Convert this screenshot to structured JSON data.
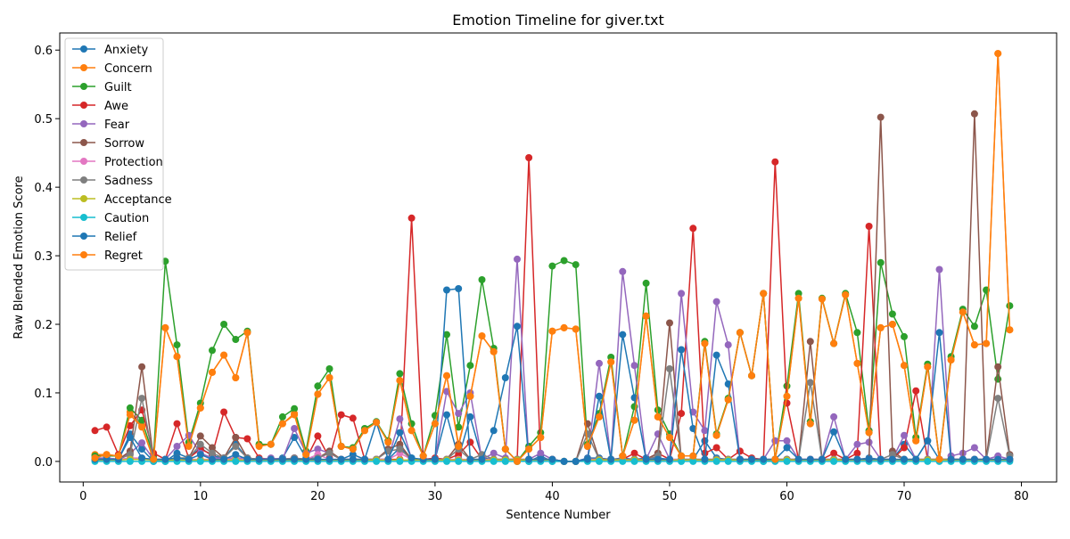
{
  "chart_data": {
    "type": "line",
    "title": "Emotion Timeline for giver.txt",
    "xlabel": "Sentence Number",
    "ylabel": "Raw Blended Emotion Score",
    "xlim": [
      -2,
      83
    ],
    "ylim": [
      -0.03,
      0.625
    ],
    "xticks": [
      0,
      10,
      20,
      30,
      40,
      50,
      60,
      70,
      80
    ],
    "yticks": [
      0.0,
      0.1,
      0.2,
      0.3,
      0.4,
      0.5,
      0.6
    ],
    "ytick_labels": [
      "0.0",
      "0.1",
      "0.2",
      "0.3",
      "0.4",
      "0.5",
      "0.6"
    ],
    "grid": false,
    "legend_position": "upper-left",
    "x": [
      1,
      2,
      3,
      4,
      5,
      6,
      7,
      8,
      9,
      10,
      11,
      12,
      13,
      14,
      15,
      16,
      17,
      18,
      19,
      20,
      21,
      22,
      23,
      24,
      25,
      26,
      27,
      28,
      29,
      30,
      31,
      32,
      33,
      34,
      35,
      36,
      37,
      38,
      39,
      40,
      41,
      42,
      43,
      44,
      45,
      46,
      47,
      48,
      49,
      50,
      51,
      52,
      53,
      54,
      55,
      56,
      57,
      58,
      59,
      60,
      61,
      62,
      63,
      64,
      65,
      66,
      67,
      68,
      69,
      70,
      71,
      72,
      73,
      74,
      75,
      76,
      77,
      78,
      79
    ],
    "series": [
      {
        "name": "Anxiety",
        "color": "#1f77b4",
        "values": [
          0.003,
          0.005,
          0.003,
          0.04,
          0.018,
          0,
          0,
          0.012,
          0.005,
          0.02,
          0.008,
          0.005,
          0.025,
          0.005,
          0.003,
          0.003,
          0.005,
          0.035,
          0.005,
          0.005,
          0.012,
          0.003,
          0.01,
          0.003,
          0.003,
          0.003,
          0.02,
          0.005,
          0.002,
          0.003,
          0.068,
          0.005,
          0.065,
          0.005,
          0.003,
          0.003,
          0.003,
          0,
          0.008,
          0,
          0,
          0,
          0.005,
          0.005,
          0.003,
          0.005,
          0.003,
          0.005,
          0.005,
          0.003,
          0.003,
          0.003,
          0.03,
          0.005,
          0.003,
          0.003,
          0.003,
          0,
          0.003,
          0.003,
          0.003,
          0.003,
          0.003,
          0.003,
          0.003,
          0.003,
          0.005,
          0.003,
          0.003,
          0.025,
          0.003,
          0.03,
          0.003,
          0.003,
          0.003,
          0.003,
          0.003,
          0.003,
          0.003
        ]
      },
      {
        "name": "Concern",
        "color": "#ff7f0e",
        "values": [
          0.01,
          0.01,
          0.008,
          0.072,
          0.052,
          0.003,
          0.195,
          0.153,
          0.025,
          0.078,
          0.13,
          0.155,
          0.122,
          0.188,
          0.025,
          0.025,
          0.055,
          0.07,
          0.01,
          0.098,
          0.122,
          0.022,
          0.018,
          0.045,
          0.057,
          0.03,
          0.118,
          0.045,
          0.008,
          0.055,
          0.125,
          0.025,
          0.095,
          0.183,
          0.16,
          0.018,
          0,
          0.018,
          0.035,
          0.19,
          0.195,
          0.193,
          0.022,
          0.065,
          0.145,
          0.008,
          0.06,
          0.212,
          0.065,
          0.035,
          0.008,
          0.008,
          0.172,
          0.038,
          0.09,
          0.188,
          0.125,
          0.245,
          0.003,
          0.095,
          0.238,
          0.055,
          0.237,
          0.172,
          0.243,
          0.143,
          0.042,
          0.195,
          0.2,
          0.14,
          0.03,
          0.138,
          0.003,
          0.148,
          0.218,
          0.17,
          0.172,
          0.595,
          0.192
        ]
      },
      {
        "name": "Guilt",
        "color": "#2ca02c",
        "values": [
          0.008,
          0.008,
          0.008,
          0.078,
          0.06,
          0.008,
          0.292,
          0.17,
          0.028,
          0.085,
          0.162,
          0.2,
          0.178,
          0.19,
          0.025,
          0.025,
          0.065,
          0.077,
          0.015,
          0.11,
          0.135,
          0.022,
          0.02,
          0.048,
          0.058,
          0.03,
          0.128,
          0.055,
          0.008,
          0.067,
          0.185,
          0.05,
          0.14,
          0.265,
          0.165,
          0.018,
          0,
          0.022,
          0.042,
          0.285,
          0.293,
          0.287,
          0.025,
          0.07,
          0.152,
          0.008,
          0.08,
          0.26,
          0.075,
          0.04,
          0.008,
          0.008,
          0.175,
          0.04,
          0.092,
          0.188,
          0.125,
          0.245,
          0.003,
          0.11,
          0.245,
          0.058,
          0.238,
          0.172,
          0.245,
          0.188,
          0.045,
          0.29,
          0.215,
          0.182,
          0.035,
          0.142,
          0.003,
          0.153,
          0.222,
          0.197,
          0.25,
          0.12,
          0.227
        ]
      },
      {
        "name": "Awe",
        "color": "#d62728",
        "values": [
          0.045,
          0.05,
          0.01,
          0.052,
          0.075,
          0.012,
          0.003,
          0.055,
          0.005,
          0.018,
          0.01,
          0.072,
          0.035,
          0.033,
          0.005,
          0.003,
          0.003,
          0.005,
          0.003,
          0.037,
          0.005,
          0.068,
          0.063,
          0.003,
          0.003,
          0.003,
          0.003,
          0.355,
          0.003,
          0.005,
          0.003,
          0.01,
          0.028,
          0.003,
          0.003,
          0.003,
          0.003,
          0.443,
          0.003,
          0.003,
          0,
          0,
          0.003,
          0.003,
          0.003,
          0.003,
          0.012,
          0.003,
          0.012,
          0.003,
          0.07,
          0.34,
          0.012,
          0.02,
          0.003,
          0.015,
          0.005,
          0.003,
          0.437,
          0.085,
          0.003,
          0.003,
          0.003,
          0.012,
          0.003,
          0.012,
          0.343,
          0.003,
          0.003,
          0.02,
          0.103,
          0.003,
          0.003,
          0.003,
          0.003,
          0.003,
          0.003,
          0.003,
          0.003
        ]
      },
      {
        "name": "Fear",
        "color": "#9467bd",
        "values": [
          0.005,
          0.005,
          0.003,
          0.012,
          0.027,
          0.003,
          0.003,
          0.022,
          0.038,
          0.012,
          0.005,
          0.005,
          0.005,
          0.005,
          0.003,
          0.005,
          0.003,
          0.048,
          0.012,
          0.018,
          0.012,
          0.003,
          0.003,
          0.003,
          0.003,
          0.003,
          0.062,
          0.003,
          0.003,
          0.003,
          0.102,
          0.07,
          0.1,
          0.003,
          0.012,
          0.005,
          0.295,
          0.003,
          0.012,
          0.003,
          0,
          0,
          0.003,
          0.143,
          0.003,
          0.277,
          0.14,
          0.003,
          0.04,
          0.003,
          0.245,
          0.072,
          0.045,
          0.233,
          0.17,
          0.003,
          0.003,
          0.003,
          0.03,
          0.03,
          0.003,
          0.003,
          0.003,
          0.065,
          0.003,
          0.025,
          0.028,
          0.003,
          0.003,
          0.038,
          0.003,
          0.003,
          0.28,
          0.008,
          0.012,
          0.02,
          0.003,
          0.008,
          0.003
        ]
      },
      {
        "name": "Sorrow",
        "color": "#8c564b",
        "values": [
          0.003,
          0.003,
          0.003,
          0.015,
          0.138,
          0.003,
          0.003,
          0.005,
          0.005,
          0.037,
          0.02,
          0.005,
          0.035,
          0.005,
          0.003,
          0.003,
          0.003,
          0.005,
          0.003,
          0.005,
          0.015,
          0.003,
          0.003,
          0.003,
          0.003,
          0.018,
          0.025,
          0.003,
          0.003,
          0.003,
          0.003,
          0.025,
          0.003,
          0.003,
          0.003,
          0.003,
          0.003,
          0.003,
          0.003,
          0.003,
          0,
          0,
          0.055,
          0.003,
          0.003,
          0.003,
          0.003,
          0.003,
          0.012,
          0.202,
          0.003,
          0.003,
          0.003,
          0.003,
          0.003,
          0.003,
          0.003,
          0.003,
          0.003,
          0.003,
          0.003,
          0.175,
          0.003,
          0.003,
          0.003,
          0.003,
          0.003,
          0.502,
          0.015,
          0.003,
          0.003,
          0.003,
          0.003,
          0.003,
          0.003,
          0.507,
          0.003,
          0.138,
          0.01
        ]
      },
      {
        "name": "Protection",
        "color": "#e377c2",
        "values": [
          0.003,
          0.003,
          0.003,
          0.005,
          0.005,
          0.003,
          0.003,
          0.003,
          0.003,
          0.003,
          0.003,
          0.003,
          0.003,
          0.003,
          0.003,
          0.003,
          0.003,
          0.005,
          0.003,
          0.01,
          0.003,
          0.003,
          0.003,
          0.003,
          0.003,
          0.003,
          0.012,
          0.003,
          0.003,
          0.003,
          0.003,
          0.003,
          0.003,
          0.003,
          0.003,
          0.003,
          0.003,
          0.003,
          0.003,
          0.003,
          0,
          0,
          0.003,
          0.003,
          0.003,
          0.003,
          0.003,
          0.003,
          0.003,
          0.003,
          0.003,
          0.003,
          0.003,
          0.003,
          0.003,
          0.003,
          0.003,
          0.003,
          0.003,
          0.003,
          0.003,
          0.003,
          0.003,
          0.003,
          0.003,
          0.003,
          0.003,
          0.003,
          0.003,
          0.003,
          0.003,
          0.003,
          0.003,
          0.003,
          0.003,
          0.003,
          0.003,
          0.003,
          0.003
        ]
      },
      {
        "name": "Sadness",
        "color": "#7f7f7f",
        "values": [
          0.003,
          0.003,
          0.003,
          0.01,
          0.092,
          0.003,
          0.003,
          0.005,
          0.005,
          0.025,
          0.012,
          0.005,
          0.022,
          0.005,
          0.003,
          0.003,
          0.003,
          0.005,
          0.003,
          0.005,
          0.012,
          0.003,
          0.003,
          0.003,
          0.003,
          0.015,
          0.018,
          0.003,
          0.003,
          0.003,
          0.003,
          0.018,
          0.003,
          0.01,
          0.003,
          0.003,
          0.003,
          0.003,
          0.003,
          0.003,
          0,
          0,
          0.04,
          0.003,
          0.003,
          0.003,
          0.003,
          0.003,
          0.008,
          0.135,
          0.003,
          0.003,
          0.003,
          0.003,
          0.003,
          0.003,
          0.003,
          0.003,
          0.003,
          0.003,
          0.003,
          0.115,
          0.003,
          0.003,
          0.003,
          0.003,
          0.003,
          0.003,
          0.01,
          0.003,
          0.003,
          0.003,
          0.003,
          0.003,
          0.003,
          0.003,
          0.003,
          0.092,
          0.008
        ]
      },
      {
        "name": "Acceptance",
        "color": "#bcbd22",
        "values": [
          0.002,
          0.002,
          0.002,
          0.003,
          0.003,
          0.002,
          0.002,
          0.002,
          0.002,
          0.002,
          0.002,
          0.002,
          0.002,
          0.002,
          0.002,
          0.002,
          0.002,
          0.002,
          0.002,
          0.002,
          0.002,
          0.002,
          0.002,
          0.002,
          0.002,
          0.002,
          0.002,
          0.002,
          0.002,
          0.002,
          0.002,
          0.002,
          0.002,
          0.002,
          0.002,
          0.002,
          0.002,
          0.002,
          0.002,
          0.002,
          0,
          0,
          0.002,
          0.002,
          0.002,
          0.002,
          0.002,
          0.002,
          0.002,
          0.002,
          0.002,
          0.002,
          0.002,
          0.002,
          0.002,
          0.002,
          0.002,
          0.002,
          0.002,
          0.002,
          0.002,
          0.002,
          0.002,
          0.002,
          0.002,
          0.002,
          0.002,
          0.002,
          0.002,
          0.002,
          0.002,
          0.002,
          0.002,
          0.002,
          0.002,
          0.002,
          0.002,
          0.002,
          0.002
        ]
      },
      {
        "name": "Caution",
        "color": "#17becf",
        "values": [
          0,
          0,
          0,
          0,
          0,
          0,
          0,
          0,
          0,
          0,
          0,
          0,
          0,
          0,
          0,
          0,
          0,
          0,
          0,
          0,
          0,
          0,
          0,
          0,
          0,
          0,
          0,
          0,
          0,
          0,
          0,
          0,
          0,
          0,
          0,
          0,
          0,
          0,
          0,
          0,
          0,
          0,
          0,
          0,
          0,
          0,
          0,
          0,
          0,
          0,
          0,
          0,
          0,
          0,
          0,
          0,
          0,
          0,
          0,
          0,
          0,
          0,
          0,
          0,
          0,
          0,
          0,
          0,
          0,
          0,
          0,
          0,
          0,
          0,
          0,
          0,
          0,
          0,
          0
        ]
      },
      {
        "name": "Relief",
        "color": "#1f77b4",
        "values": [
          0.003,
          0.003,
          0.003,
          0.035,
          0.005,
          0.003,
          0.003,
          0.005,
          0.003,
          0.01,
          0.003,
          0.003,
          0.01,
          0.003,
          0.003,
          0.003,
          0.003,
          0.003,
          0.003,
          0.003,
          0.003,
          0.003,
          0.003,
          0.003,
          0.057,
          0.003,
          0.042,
          0.005,
          0.003,
          0.003,
          0.25,
          0.252,
          0.003,
          0.003,
          0.045,
          0.122,
          0.197,
          0.003,
          0.003,
          0.003,
          0,
          0,
          0.003,
          0.095,
          0.003,
          0.185,
          0.093,
          0.003,
          0.003,
          0.003,
          0.163,
          0.048,
          0.003,
          0.155,
          0.113,
          0.003,
          0.003,
          0.003,
          0.003,
          0.02,
          0.003,
          0.003,
          0.003,
          0.043,
          0.003,
          0.003,
          0.003,
          0.003,
          0.003,
          0.003,
          0.003,
          0.03,
          0.188,
          0.003,
          0.003,
          0.003,
          0.003,
          0.003,
          0.003
        ]
      },
      {
        "name": "Regret",
        "color": "#ff7f0e",
        "values": [
          0.005,
          0.01,
          0.008,
          0.068,
          0.05,
          0.003,
          0.195,
          0.153,
          0.022,
          0.078,
          0.13,
          0.155,
          0.122,
          0.188,
          0.022,
          0.025,
          0.055,
          0.068,
          0.01,
          0.098,
          0.122,
          0.022,
          0.018,
          0.045,
          0.057,
          0.028,
          0.118,
          0.045,
          0.008,
          0.055,
          0.125,
          0.022,
          0.095,
          0.183,
          0.16,
          0.018,
          0,
          0.018,
          0.035,
          0.19,
          0.195,
          0.193,
          0.022,
          0.065,
          0.145,
          0.008,
          0.06,
          0.212,
          0.065,
          0.035,
          0.008,
          0.008,
          0.172,
          0.038,
          0.09,
          0.188,
          0.125,
          0.245,
          0.003,
          0.095,
          0.238,
          0.055,
          0.237,
          0.172,
          0.243,
          0.143,
          0.042,
          0.195,
          0.2,
          0.14,
          0.03,
          0.138,
          0.003,
          0.148,
          0.218,
          0.17,
          0.172,
          0.595,
          0.192
        ]
      }
    ]
  }
}
